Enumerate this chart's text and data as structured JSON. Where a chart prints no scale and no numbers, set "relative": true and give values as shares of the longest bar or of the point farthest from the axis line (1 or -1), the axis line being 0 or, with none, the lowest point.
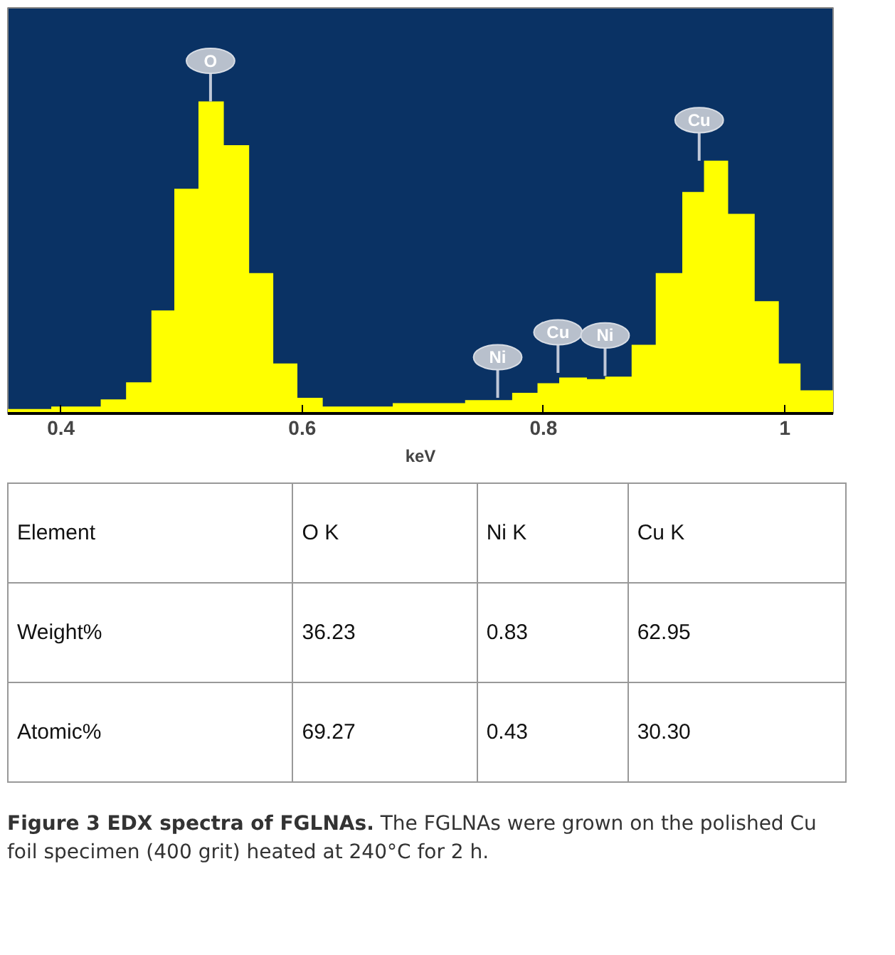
{
  "chart_data": {
    "type": "area",
    "relative": true,
    "xlabel": "keV",
    "color": "#ffff00",
    "title": "Figure 3 EDX spectra of FGLNAs.",
    "subtitle": "The FGLNAs were grown on the polished Cu foil specimen (400 grit) heated at 240°C for 2 h.",
    "x": [
      0.356,
      0.392,
      0.392,
      0.433,
      0.433,
      0.454,
      0.454,
      0.475,
      0.475,
      0.494,
      0.494,
      0.514,
      0.514,
      0.535,
      0.535,
      0.556,
      0.556,
      0.576,
      0.576,
      0.596,
      0.596,
      0.617,
      0.617,
      0.675,
      0.675,
      0.735,
      0.735,
      0.774,
      0.774,
      0.795,
      0.795,
      0.813,
      0.813,
      0.836,
      0.836,
      0.851,
      0.851,
      0.873,
      0.873,
      0.893,
      0.893,
      0.915,
      0.915,
      0.933,
      0.933,
      0.953,
      0.953,
      0.975,
      0.975,
      0.995,
      0.995,
      1.013,
      1.013,
      1.04
    ],
    "values": [
      0.014,
      0.014,
      0.022,
      0.022,
      0.045,
      0.045,
      0.1,
      0.1,
      0.33,
      0.33,
      0.72,
      0.72,
      1,
      1,
      0.86,
      0.86,
      0.45,
      0.45,
      0.16,
      0.16,
      0.05,
      0.05,
      0.022,
      0.022,
      0.033,
      0.033,
      0.043,
      0.043,
      0.066,
      0.066,
      0.097,
      0.097,
      0.115,
      0.115,
      0.11,
      0.11,
      0.118,
      0.118,
      0.22,
      0.22,
      0.45,
      0.45,
      0.71,
      0.71,
      0.81,
      0.81,
      0.64,
      0.64,
      0.36,
      0.36,
      0.16,
      0.16,
      0.074,
      0.074
    ],
    "xlim": [
      0.356,
      1.04
    ],
    "xticks": [
      0.4,
      0.6,
      0.8,
      1
    ],
    "annotations": [
      {
        "text": "O",
        "x": 0.524,
        "y": 1
      },
      {
        "text": "Ni",
        "x": 0.762,
        "y": 0.05
      },
      {
        "text": "Cu",
        "x": 0.812,
        "y": 0.13
      },
      {
        "text": "Ni",
        "x": 0.851,
        "y": 0.12
      },
      {
        "text": "Cu",
        "x": 0.929,
        "y": 0.81
      },
      "Element",
      "O  K",
      "Ni K",
      "Cu K",
      "Weight%",
      "36.23",
      "0.83",
      "62.95",
      "Atomic%",
      "69.27",
      "0.43",
      "30.30"
    ]
  }
}
